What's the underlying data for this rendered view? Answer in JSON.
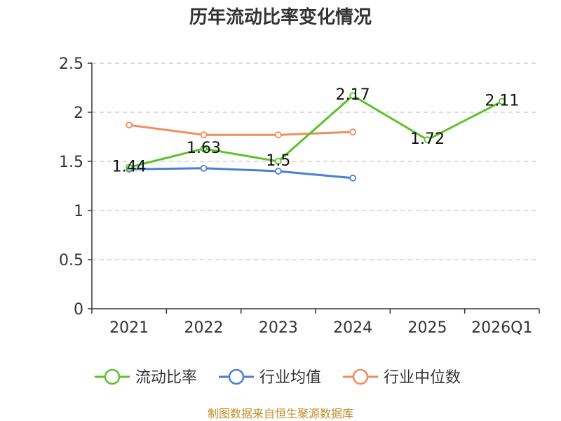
{
  "chart_data": {
    "type": "line",
    "title": "历年流动比率变化情况",
    "categories": [
      "2021",
      "2022",
      "2023",
      "2024",
      "2025",
      "2026Q1"
    ],
    "y_ticks": [
      "0",
      "0.5",
      "1",
      "1.5",
      "2",
      "2.5"
    ],
    "ylim": [
      0,
      2.5
    ],
    "grid": true,
    "legend_position": "bottom",
    "series": [
      {
        "name": "流动比率",
        "color": "#5cc22b",
        "values": [
          1.44,
          1.63,
          1.5,
          2.17,
          1.72,
          2.11
        ],
        "labels": [
          "1.44",
          "1.63",
          "1.5",
          "2.17",
          "1.72",
          "2.11"
        ]
      },
      {
        "name": "行业均值",
        "color": "#4a7fd6",
        "values": [
          1.42,
          1.43,
          1.4,
          1.33,
          null,
          null
        ]
      },
      {
        "name": "行业中位数",
        "color": "#f28c5a",
        "values": [
          1.87,
          1.77,
          1.77,
          1.8,
          null,
          null
        ]
      }
    ],
    "source": "制图数据来自恒生聚源数据库"
  }
}
